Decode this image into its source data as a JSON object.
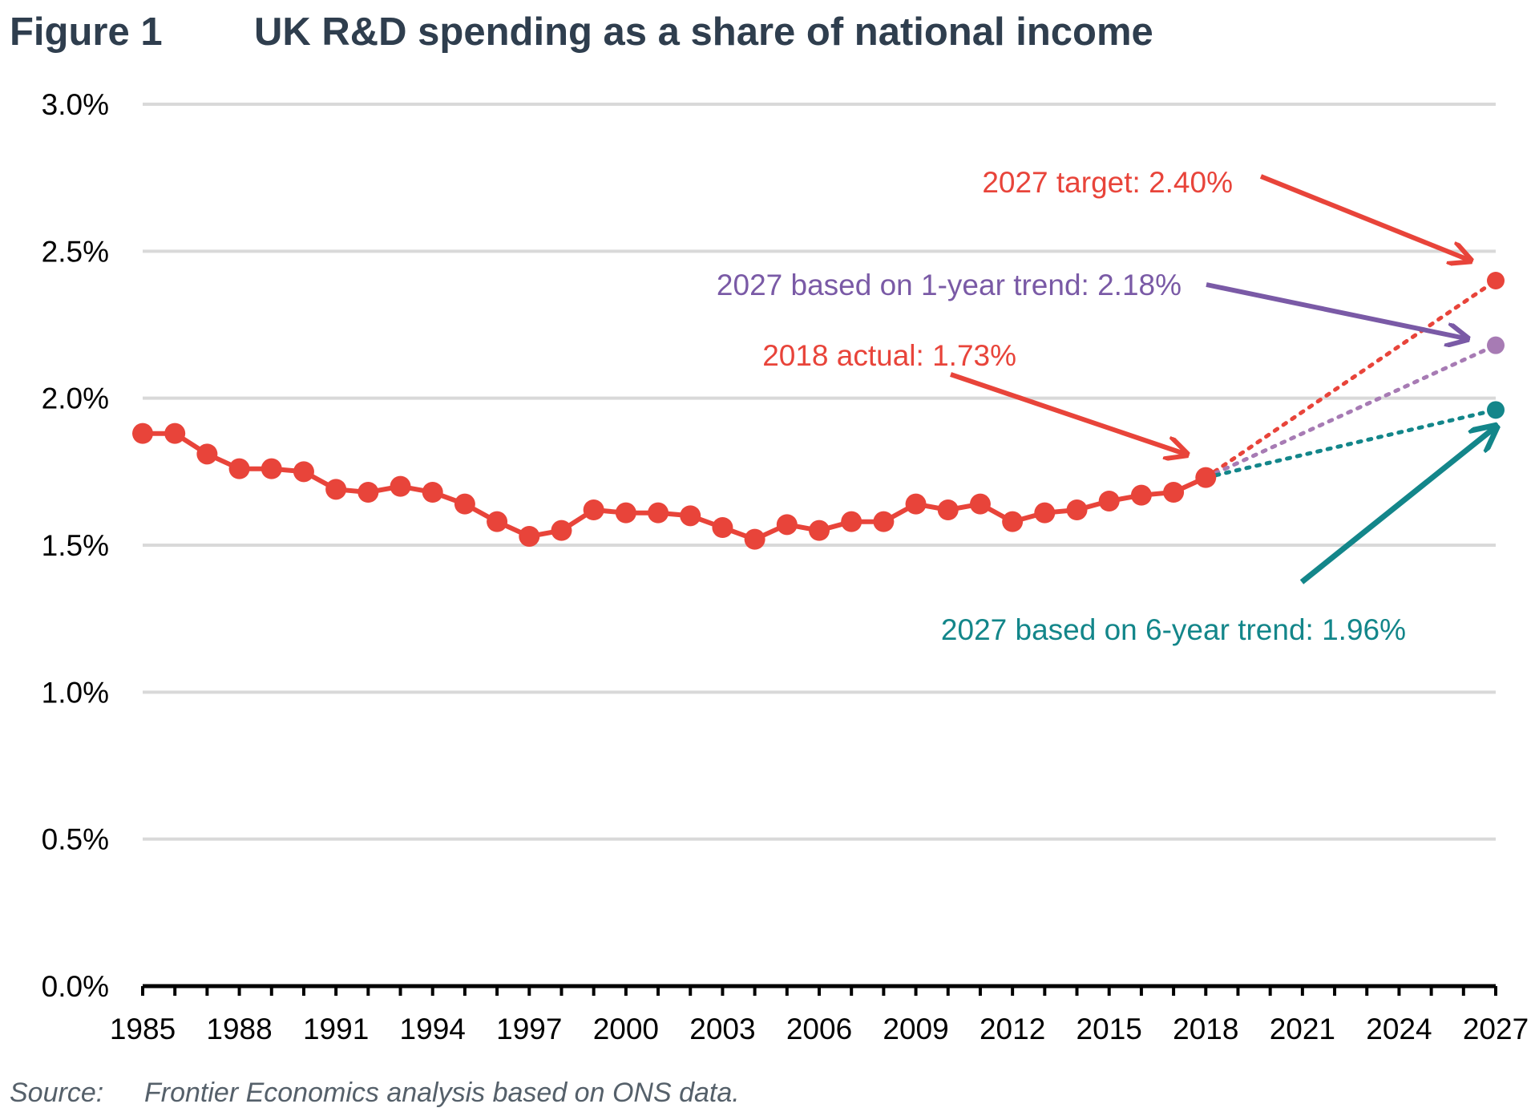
{
  "figure": {
    "label": "Figure 1",
    "title": "UK R&D spending as a share of national income"
  },
  "source": {
    "label": "Source:",
    "text": "Frontier Economics analysis based on ONS data."
  },
  "chart_data": {
    "type": "line",
    "ylim": [
      0,
      3.0
    ],
    "xlim": [
      1985,
      2027
    ],
    "y_ticks": [
      "0.0%",
      "0.5%",
      "1.0%",
      "1.5%",
      "2.0%",
      "2.5%",
      "3.0%"
    ],
    "y_tick_values": [
      0,
      0.5,
      1.0,
      1.5,
      2.0,
      2.5,
      3.0
    ],
    "x_ticks": [
      "1985",
      "1988",
      "1991",
      "1994",
      "1997",
      "2000",
      "2003",
      "2006",
      "2009",
      "2012",
      "2015",
      "2018",
      "2021",
      "2024",
      "2027"
    ],
    "x_tick_values": [
      1985,
      1988,
      1991,
      1994,
      1997,
      2000,
      2003,
      2006,
      2009,
      2012,
      2015,
      2018,
      2021,
      2024,
      2027
    ],
    "grid": true,
    "colors": {
      "actual": "#e8443a",
      "one_year": "#a77bb4",
      "six_year": "#13868a",
      "arrow_purple": "#7a5aa6",
      "grid": "#d9d9d9",
      "axis": "#000000"
    },
    "series": [
      {
        "key": "actual",
        "style": "solid-markers",
        "x": [
          1985,
          1986,
          1987,
          1988,
          1989,
          1990,
          1991,
          1992,
          1993,
          1994,
          1995,
          1996,
          1997,
          1998,
          1999,
          2000,
          2001,
          2002,
          2003,
          2004,
          2005,
          2006,
          2007,
          2008,
          2009,
          2010,
          2011,
          2012,
          2013,
          2014,
          2015,
          2016,
          2017,
          2018
        ],
        "y": [
          1.88,
          1.88,
          1.81,
          1.76,
          1.76,
          1.75,
          1.69,
          1.68,
          1.7,
          1.68,
          1.64,
          1.58,
          1.53,
          1.55,
          1.62,
          1.61,
          1.61,
          1.6,
          1.56,
          1.52,
          1.57,
          1.55,
          1.58,
          1.58,
          1.64,
          1.62,
          1.64,
          1.58,
          1.61,
          1.62,
          1.65,
          1.67,
          1.68,
          1.73
        ]
      },
      {
        "key": "target",
        "style": "dotted",
        "color_key": "actual",
        "x": [
          2018,
          2027
        ],
        "y": [
          1.73,
          2.4
        ]
      },
      {
        "key": "one_year",
        "style": "dotted",
        "color_key": "one_year",
        "x": [
          2018,
          2027
        ],
        "y": [
          1.73,
          2.18
        ]
      },
      {
        "key": "six_year",
        "style": "dotted",
        "color_key": "six_year",
        "x": [
          2018,
          2027
        ],
        "y": [
          1.73,
          1.96
        ]
      }
    ],
    "annotations": [
      {
        "key": "target",
        "text": "2027 target: 2.40%",
        "color_key": "actual"
      },
      {
        "key": "one_year",
        "text": "2027 based on 1-year trend: 2.18%",
        "color_key": "arrow_purple"
      },
      {
        "key": "actual2018",
        "text": "2018 actual: 1.73%",
        "color_key": "actual"
      },
      {
        "key": "six_year",
        "text": "2027 based on 6-year trend: 1.96%",
        "color_key": "six_year"
      }
    ]
  }
}
